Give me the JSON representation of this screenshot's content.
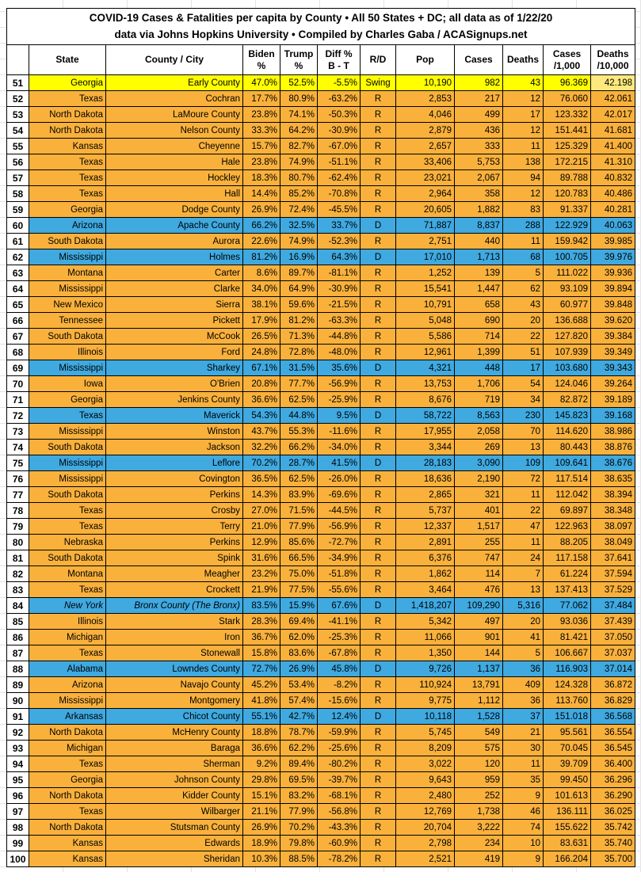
{
  "title": {
    "line1": "COVID-19 Cases & Fatalities per capita by County • All 50 States + DC; all data as of 1/22/20",
    "line2": "data via Johns Hopkins University • Compiled by Charles Gaba / ACASignups.net"
  },
  "columns": [
    {
      "key": "rank",
      "label": ""
    },
    {
      "key": "state",
      "label": "State"
    },
    {
      "key": "county",
      "label": "County / City"
    },
    {
      "key": "biden",
      "label": "Biden\n%"
    },
    {
      "key": "trump",
      "label": "Trump\n%"
    },
    {
      "key": "diff",
      "label": "Diff %\nB - T"
    },
    {
      "key": "rd",
      "label": "R/D"
    },
    {
      "key": "pop",
      "label": "Pop"
    },
    {
      "key": "cases",
      "label": "Cases"
    },
    {
      "key": "deaths",
      "label": "Deaths"
    },
    {
      "key": "c1000",
      "label": "Cases\n/1,000"
    },
    {
      "key": "d10k",
      "label": "Deaths\n/10,000"
    }
  ],
  "colors": {
    "orange": "#F9B13C",
    "blue": "#3FA9E0",
    "yellow": "#FFFF00",
    "pale_yellow": "#FFE97F",
    "border": "#000000"
  },
  "rows": [
    {
      "rank": "51",
      "state": "Georgia",
      "county": "Early County",
      "biden": "47.0%",
      "trump": "52.5%",
      "diff": "-5.5%",
      "rd": "Swing",
      "pop": "10,190",
      "cases": "982",
      "deaths": "43",
      "c1000": "96.369",
      "d10k": "42.198",
      "highlight": "yellow"
    },
    {
      "rank": "52",
      "state": "Texas",
      "county": "Cochran",
      "biden": "17.7%",
      "trump": "80.9%",
      "diff": "-63.2%",
      "rd": "R",
      "pop": "2,853",
      "cases": "217",
      "deaths": "12",
      "c1000": "76.060",
      "d10k": "42.061",
      "highlight": "orange"
    },
    {
      "rank": "53",
      "state": "North Dakota",
      "county": "LaMoure County",
      "biden": "23.8%",
      "trump": "74.1%",
      "diff": "-50.3%",
      "rd": "R",
      "pop": "4,046",
      "cases": "499",
      "deaths": "17",
      "c1000": "123.332",
      "d10k": "42.017",
      "highlight": "orange"
    },
    {
      "rank": "54",
      "state": "North Dakota",
      "county": "Nelson County",
      "biden": "33.3%",
      "trump": "64.2%",
      "diff": "-30.9%",
      "rd": "R",
      "pop": "2,879",
      "cases": "436",
      "deaths": "12",
      "c1000": "151.441",
      "d10k": "41.681",
      "highlight": "orange"
    },
    {
      "rank": "55",
      "state": "Kansas",
      "county": "Cheyenne",
      "biden": "15.7%",
      "trump": "82.7%",
      "diff": "-67.0%",
      "rd": "R",
      "pop": "2,657",
      "cases": "333",
      "deaths": "11",
      "c1000": "125.329",
      "d10k": "41.400",
      "highlight": "orange"
    },
    {
      "rank": "56",
      "state": "Texas",
      "county": "Hale",
      "biden": "23.8%",
      "trump": "74.9%",
      "diff": "-51.1%",
      "rd": "R",
      "pop": "33,406",
      "cases": "5,753",
      "deaths": "138",
      "c1000": "172.215",
      "d10k": "41.310",
      "highlight": "orange"
    },
    {
      "rank": "57",
      "state": "Texas",
      "county": "Hockley",
      "biden": "18.3%",
      "trump": "80.7%",
      "diff": "-62.4%",
      "rd": "R",
      "pop": "23,021",
      "cases": "2,067",
      "deaths": "94",
      "c1000": "89.788",
      "d10k": "40.832",
      "highlight": "orange"
    },
    {
      "rank": "58",
      "state": "Texas",
      "county": "Hall",
      "biden": "14.4%",
      "trump": "85.2%",
      "diff": "-70.8%",
      "rd": "R",
      "pop": "2,964",
      "cases": "358",
      "deaths": "12",
      "c1000": "120.783",
      "d10k": "40.486",
      "highlight": "orange"
    },
    {
      "rank": "59",
      "state": "Georgia",
      "county": "Dodge County",
      "biden": "26.9%",
      "trump": "72.4%",
      "diff": "-45.5%",
      "rd": "R",
      "pop": "20,605",
      "cases": "1,882",
      "deaths": "83",
      "c1000": "91.337",
      "d10k": "40.281",
      "highlight": "orange"
    },
    {
      "rank": "60",
      "state": "Arizona",
      "county": "Apache County",
      "biden": "66.2%",
      "trump": "32.5%",
      "diff": "33.7%",
      "rd": "D",
      "pop": "71,887",
      "cases": "8,837",
      "deaths": "288",
      "c1000": "122.929",
      "d10k": "40.063",
      "highlight": "blue"
    },
    {
      "rank": "61",
      "state": "South Dakota",
      "county": "Aurora",
      "biden": "22.6%",
      "trump": "74.9%",
      "diff": "-52.3%",
      "rd": "R",
      "pop": "2,751",
      "cases": "440",
      "deaths": "11",
      "c1000": "159.942",
      "d10k": "39.985",
      "highlight": "orange"
    },
    {
      "rank": "62",
      "state": "Mississippi",
      "county": "Holmes",
      "biden": "81.2%",
      "trump": "16.9%",
      "diff": "64.3%",
      "rd": "D",
      "pop": "17,010",
      "cases": "1,713",
      "deaths": "68",
      "c1000": "100.705",
      "d10k": "39.976",
      "highlight": "blue"
    },
    {
      "rank": "63",
      "state": "Montana",
      "county": "Carter",
      "biden": "8.6%",
      "trump": "89.7%",
      "diff": "-81.1%",
      "rd": "R",
      "pop": "1,252",
      "cases": "139",
      "deaths": "5",
      "c1000": "111.022",
      "d10k": "39.936",
      "highlight": "orange"
    },
    {
      "rank": "64",
      "state": "Mississippi",
      "county": "Clarke",
      "biden": "34.0%",
      "trump": "64.9%",
      "diff": "-30.9%",
      "rd": "R",
      "pop": "15,541",
      "cases": "1,447",
      "deaths": "62",
      "c1000": "93.109",
      "d10k": "39.894",
      "highlight": "orange"
    },
    {
      "rank": "65",
      "state": "New Mexico",
      "county": "Sierra",
      "biden": "38.1%",
      "trump": "59.6%",
      "diff": "-21.5%",
      "rd": "R",
      "pop": "10,791",
      "cases": "658",
      "deaths": "43",
      "c1000": "60.977",
      "d10k": "39.848",
      "highlight": "orange"
    },
    {
      "rank": "66",
      "state": "Tennessee",
      "county": "Pickett",
      "biden": "17.9%",
      "trump": "81.2%",
      "diff": "-63.3%",
      "rd": "R",
      "pop": "5,048",
      "cases": "690",
      "deaths": "20",
      "c1000": "136.688",
      "d10k": "39.620",
      "highlight": "orange"
    },
    {
      "rank": "67",
      "state": "South Dakota",
      "county": "McCook",
      "biden": "26.5%",
      "trump": "71.3%",
      "diff": "-44.8%",
      "rd": "R",
      "pop": "5,586",
      "cases": "714",
      "deaths": "22",
      "c1000": "127.820",
      "d10k": "39.384",
      "highlight": "orange"
    },
    {
      "rank": "68",
      "state": "Illinois",
      "county": "Ford",
      "biden": "24.8%",
      "trump": "72.8%",
      "diff": "-48.0%",
      "rd": "R",
      "pop": "12,961",
      "cases": "1,399",
      "deaths": "51",
      "c1000": "107.939",
      "d10k": "39.349",
      "highlight": "orange"
    },
    {
      "rank": "69",
      "state": "Mississippi",
      "county": "Sharkey",
      "biden": "67.1%",
      "trump": "31.5%",
      "diff": "35.6%",
      "rd": "D",
      "pop": "4,321",
      "cases": "448",
      "deaths": "17",
      "c1000": "103.680",
      "d10k": "39.343",
      "highlight": "blue"
    },
    {
      "rank": "70",
      "state": "Iowa",
      "county": "O'Brien",
      "biden": "20.8%",
      "trump": "77.7%",
      "diff": "-56.9%",
      "rd": "R",
      "pop": "13,753",
      "cases": "1,706",
      "deaths": "54",
      "c1000": "124.046",
      "d10k": "39.264",
      "highlight": "orange"
    },
    {
      "rank": "71",
      "state": "Georgia",
      "county": "Jenkins County",
      "biden": "36.6%",
      "trump": "62.5%",
      "diff": "-25.9%",
      "rd": "R",
      "pop": "8,676",
      "cases": "719",
      "deaths": "34",
      "c1000": "82.872",
      "d10k": "39.189",
      "highlight": "orange"
    },
    {
      "rank": "72",
      "state": "Texas",
      "county": "Maverick",
      "biden": "54.3%",
      "trump": "44.8%",
      "diff": "9.5%",
      "rd": "D",
      "pop": "58,722",
      "cases": "8,563",
      "deaths": "230",
      "c1000": "145.823",
      "d10k": "39.168",
      "highlight": "blue"
    },
    {
      "rank": "73",
      "state": "Mississippi",
      "county": "Winston",
      "biden": "43.7%",
      "trump": "55.3%",
      "diff": "-11.6%",
      "rd": "R",
      "pop": "17,955",
      "cases": "2,058",
      "deaths": "70",
      "c1000": "114.620",
      "d10k": "38.986",
      "highlight": "orange"
    },
    {
      "rank": "74",
      "state": "South Dakota",
      "county": "Jackson",
      "biden": "32.2%",
      "trump": "66.2%",
      "diff": "-34.0%",
      "rd": "R",
      "pop": "3,344",
      "cases": "269",
      "deaths": "13",
      "c1000": "80.443",
      "d10k": "38.876",
      "highlight": "orange"
    },
    {
      "rank": "75",
      "state": "Mississippi",
      "county": "Leflore",
      "biden": "70.2%",
      "trump": "28.7%",
      "diff": "41.5%",
      "rd": "D",
      "pop": "28,183",
      "cases": "3,090",
      "deaths": "109",
      "c1000": "109.641",
      "d10k": "38.676",
      "highlight": "blue"
    },
    {
      "rank": "76",
      "state": "Mississippi",
      "county": "Covington",
      "biden": "36.5%",
      "trump": "62.5%",
      "diff": "-26.0%",
      "rd": "R",
      "pop": "18,636",
      "cases": "2,190",
      "deaths": "72",
      "c1000": "117.514",
      "d10k": "38.635",
      "highlight": "orange"
    },
    {
      "rank": "77",
      "state": "South Dakota",
      "county": "Perkins",
      "biden": "14.3%",
      "trump": "83.9%",
      "diff": "-69.6%",
      "rd": "R",
      "pop": "2,865",
      "cases": "321",
      "deaths": "11",
      "c1000": "112.042",
      "d10k": "38.394",
      "highlight": "orange"
    },
    {
      "rank": "78",
      "state": "Texas",
      "county": "Crosby",
      "biden": "27.0%",
      "trump": "71.5%",
      "diff": "-44.5%",
      "rd": "R",
      "pop": "5,737",
      "cases": "401",
      "deaths": "22",
      "c1000": "69.897",
      "d10k": "38.348",
      "highlight": "orange"
    },
    {
      "rank": "79",
      "state": "Texas",
      "county": "Terry",
      "biden": "21.0%",
      "trump": "77.9%",
      "diff": "-56.9%",
      "rd": "R",
      "pop": "12,337",
      "cases": "1,517",
      "deaths": "47",
      "c1000": "122.963",
      "d10k": "38.097",
      "highlight": "orange"
    },
    {
      "rank": "80",
      "state": "Nebraska",
      "county": "Perkins",
      "biden": "12.9%",
      "trump": "85.6%",
      "diff": "-72.7%",
      "rd": "R",
      "pop": "2,891",
      "cases": "255",
      "deaths": "11",
      "c1000": "88.205",
      "d10k": "38.049",
      "highlight": "orange"
    },
    {
      "rank": "81",
      "state": "South Dakota",
      "county": "Spink",
      "biden": "31.6%",
      "trump": "66.5%",
      "diff": "-34.9%",
      "rd": "R",
      "pop": "6,376",
      "cases": "747",
      "deaths": "24",
      "c1000": "117.158",
      "d10k": "37.641",
      "highlight": "orange"
    },
    {
      "rank": "82",
      "state": "Montana",
      "county": "Meagher",
      "biden": "23.2%",
      "trump": "75.0%",
      "diff": "-51.8%",
      "rd": "R",
      "pop": "1,862",
      "cases": "114",
      "deaths": "7",
      "c1000": "61.224",
      "d10k": "37.594",
      "highlight": "orange"
    },
    {
      "rank": "83",
      "state": "Texas",
      "county": "Crockett",
      "biden": "21.9%",
      "trump": "77.5%",
      "diff": "-55.6%",
      "rd": "R",
      "pop": "3,464",
      "cases": "476",
      "deaths": "13",
      "c1000": "137.413",
      "d10k": "37.529",
      "highlight": "orange"
    },
    {
      "rank": "84",
      "state": "New York",
      "county": "Bronx County (The Bronx)",
      "biden": "83.5%",
      "trump": "15.9%",
      "diff": "67.6%",
      "rd": "D",
      "pop": "1,418,207",
      "cases": "109,290",
      "deaths": "5,316",
      "c1000": "77.062",
      "d10k": "37.484",
      "highlight": "blue",
      "italic": true
    },
    {
      "rank": "85",
      "state": "Illinois",
      "county": "Stark",
      "biden": "28.3%",
      "trump": "69.4%",
      "diff": "-41.1%",
      "rd": "R",
      "pop": "5,342",
      "cases": "497",
      "deaths": "20",
      "c1000": "93.036",
      "d10k": "37.439",
      "highlight": "orange"
    },
    {
      "rank": "86",
      "state": "Michigan",
      "county": "Iron",
      "biden": "36.7%",
      "trump": "62.0%",
      "diff": "-25.3%",
      "rd": "R",
      "pop": "11,066",
      "cases": "901",
      "deaths": "41",
      "c1000": "81.421",
      "d10k": "37.050",
      "highlight": "orange"
    },
    {
      "rank": "87",
      "state": "Texas",
      "county": "Stonewall",
      "biden": "15.8%",
      "trump": "83.6%",
      "diff": "-67.8%",
      "rd": "R",
      "pop": "1,350",
      "cases": "144",
      "deaths": "5",
      "c1000": "106.667",
      "d10k": "37.037",
      "highlight": "orange"
    },
    {
      "rank": "88",
      "state": "Alabama",
      "county": "Lowndes County",
      "biden": "72.7%",
      "trump": "26.9%",
      "diff": "45.8%",
      "rd": "D",
      "pop": "9,726",
      "cases": "1,137",
      "deaths": "36",
      "c1000": "116.903",
      "d10k": "37.014",
      "highlight": "blue"
    },
    {
      "rank": "89",
      "state": "Arizona",
      "county": "Navajo County",
      "biden": "45.2%",
      "trump": "53.4%",
      "diff": "-8.2%",
      "rd": "R",
      "pop": "110,924",
      "cases": "13,791",
      "deaths": "409",
      "c1000": "124.328",
      "d10k": "36.872",
      "highlight": "orange"
    },
    {
      "rank": "90",
      "state": "Mississippi",
      "county": "Montgomery",
      "biden": "41.8%",
      "trump": "57.4%",
      "diff": "-15.6%",
      "rd": "R",
      "pop": "9,775",
      "cases": "1,112",
      "deaths": "36",
      "c1000": "113.760",
      "d10k": "36.829",
      "highlight": "orange"
    },
    {
      "rank": "91",
      "state": "Arkansas",
      "county": "Chicot County",
      "biden": "55.1%",
      "trump": "42.7%",
      "diff": "12.4%",
      "rd": "D",
      "pop": "10,118",
      "cases": "1,528",
      "deaths": "37",
      "c1000": "151.018",
      "d10k": "36.568",
      "highlight": "blue"
    },
    {
      "rank": "92",
      "state": "North Dakota",
      "county": "McHenry County",
      "biden": "18.8%",
      "trump": "78.7%",
      "diff": "-59.9%",
      "rd": "R",
      "pop": "5,745",
      "cases": "549",
      "deaths": "21",
      "c1000": "95.561",
      "d10k": "36.554",
      "highlight": "orange"
    },
    {
      "rank": "93",
      "state": "Michigan",
      "county": "Baraga",
      "biden": "36.6%",
      "trump": "62.2%",
      "diff": "-25.6%",
      "rd": "R",
      "pop": "8,209",
      "cases": "575",
      "deaths": "30",
      "c1000": "70.045",
      "d10k": "36.545",
      "highlight": "orange"
    },
    {
      "rank": "94",
      "state": "Texas",
      "county": "Sherman",
      "biden": "9.2%",
      "trump": "89.4%",
      "diff": "-80.2%",
      "rd": "R",
      "pop": "3,022",
      "cases": "120",
      "deaths": "11",
      "c1000": "39.709",
      "d10k": "36.400",
      "highlight": "orange"
    },
    {
      "rank": "95",
      "state": "Georgia",
      "county": "Johnson County",
      "biden": "29.8%",
      "trump": "69.5%",
      "diff": "-39.7%",
      "rd": "R",
      "pop": "9,643",
      "cases": "959",
      "deaths": "35",
      "c1000": "99.450",
      "d10k": "36.296",
      "highlight": "orange"
    },
    {
      "rank": "96",
      "state": "North Dakota",
      "county": "Kidder County",
      "biden": "15.1%",
      "trump": "83.2%",
      "diff": "-68.1%",
      "rd": "R",
      "pop": "2,480",
      "cases": "252",
      "deaths": "9",
      "c1000": "101.613",
      "d10k": "36.290",
      "highlight": "orange"
    },
    {
      "rank": "97",
      "state": "Texas",
      "county": "Wilbarger",
      "biden": "21.1%",
      "trump": "77.9%",
      "diff": "-56.8%",
      "rd": "R",
      "pop": "12,769",
      "cases": "1,738",
      "deaths": "46",
      "c1000": "136.111",
      "d10k": "36.025",
      "highlight": "orange"
    },
    {
      "rank": "98",
      "state": "North Dakota",
      "county": "Stutsman County",
      "biden": "26.9%",
      "trump": "70.2%",
      "diff": "-43.3%",
      "rd": "R",
      "pop": "20,704",
      "cases": "3,222",
      "deaths": "74",
      "c1000": "155.622",
      "d10k": "35.742",
      "highlight": "orange"
    },
    {
      "rank": "99",
      "state": "Kansas",
      "county": "Edwards",
      "biden": "18.9%",
      "trump": "79.8%",
      "diff": "-60.9%",
      "rd": "R",
      "pop": "2,798",
      "cases": "234",
      "deaths": "10",
      "c1000": "83.631",
      "d10k": "35.740",
      "highlight": "orange"
    },
    {
      "rank": "100",
      "state": "Kansas",
      "county": "Sheridan",
      "biden": "10.3%",
      "trump": "88.5%",
      "diff": "-78.2%",
      "rd": "R",
      "pop": "2,521",
      "cases": "419",
      "deaths": "9",
      "c1000": "166.204",
      "d10k": "35.700",
      "highlight": "orange"
    }
  ]
}
